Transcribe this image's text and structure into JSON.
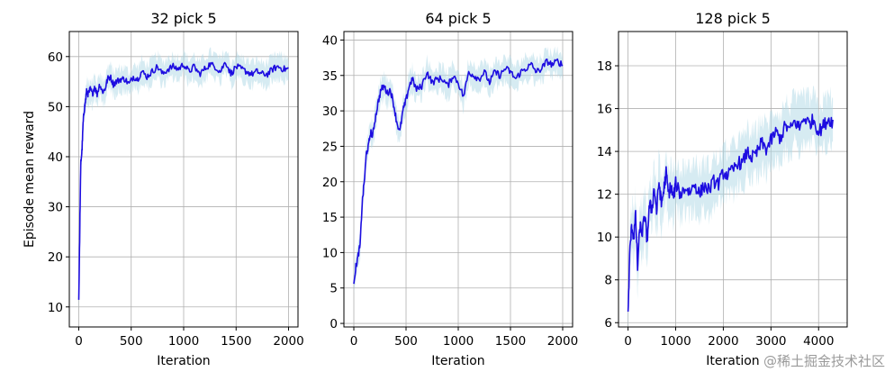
{
  "figure": {
    "ylabel": "Episode mean reward",
    "watermark": "@稀土掘金技术社区",
    "colors": {
      "mean_line": "#1d0de0",
      "band": "#add8e6",
      "grid": "#b0b0b0",
      "axes": "#000000"
    }
  },
  "chart_data": [
    {
      "type": "line",
      "title": "32 pick 5",
      "xlabel": "Iteration",
      "ylabel": "Episode mean reward",
      "xlim": [
        -90,
        2090
      ],
      "ylim": [
        6,
        65
      ],
      "xticks": [
        0,
        500,
        1000,
        1500,
        2000
      ],
      "yticks": [
        10,
        20,
        30,
        40,
        50,
        60
      ],
      "grid": true,
      "series": [
        {
          "x": [
            0,
            10,
            20,
            30,
            40,
            50,
            60,
            75,
            90,
            110,
            130,
            150,
            175,
            200,
            225,
            250,
            275,
            300,
            330,
            360,
            400,
            440,
            480,
            520,
            560,
            600,
            650,
            700,
            750,
            800,
            850,
            900,
            950,
            1000,
            1050,
            1100,
            1150,
            1200,
            1250,
            1300,
            1350,
            1400,
            1450,
            1500,
            1550,
            1600,
            1650,
            1700,
            1750,
            1800,
            1850,
            1900,
            1950,
            2000
          ],
          "y": [
            11.5,
            26,
            39,
            41,
            46,
            49,
            50.5,
            53,
            52.5,
            53.5,
            52.5,
            54,
            52.5,
            54.5,
            53,
            53.5,
            55.5,
            56,
            54.5,
            55,
            55.5,
            55.5,
            54.5,
            56,
            55.5,
            57,
            56,
            57,
            58,
            56.5,
            57.5,
            58,
            57.5,
            58.5,
            57,
            58,
            56.5,
            57.5,
            58.5,
            58,
            57,
            59,
            56.5,
            58,
            57.5,
            57,
            56.5,
            57,
            56.5,
            56.5,
            57.5,
            58,
            57.5,
            57.5
          ],
          "band": 2.2
        }
      ]
    },
    {
      "type": "line",
      "title": "64 pick 5",
      "xlabel": "Iteration",
      "xlim": [
        -95,
        2095
      ],
      "ylim": [
        -0.5,
        41.2
      ],
      "xticks": [
        0,
        500,
        1000,
        1500,
        2000
      ],
      "yticks": [
        0,
        5,
        10,
        15,
        20,
        25,
        30,
        35,
        40
      ],
      "grid": true,
      "series": [
        {
          "x": [
            0,
            20,
            40,
            60,
            80,
            100,
            120,
            140,
            160,
            180,
            200,
            230,
            260,
            290,
            320,
            350,
            380,
            410,
            440,
            470,
            500,
            530,
            560,
            600,
            650,
            700,
            750,
            800,
            850,
            900,
            950,
            1000,
            1050,
            1100,
            1150,
            1200,
            1250,
            1300,
            1350,
            1400,
            1450,
            1500,
            1550,
            1600,
            1650,
            1700,
            1750,
            1800,
            1850,
            1900,
            1950,
            2000
          ],
          "y": [
            6,
            8,
            9.5,
            11,
            17,
            20,
            24,
            25,
            27,
            26.5,
            28.5,
            31,
            33,
            33.5,
            32.5,
            33,
            31,
            28.5,
            27,
            30,
            31.5,
            33.5,
            34.5,
            33,
            33.5,
            35.5,
            34,
            34.5,
            34.5,
            33.5,
            35,
            34,
            32,
            35.5,
            35,
            34.5,
            35.5,
            34,
            35.5,
            35,
            36,
            35.5,
            34.5,
            35.5,
            36,
            36.5,
            35.5,
            36,
            37,
            36.5,
            37,
            36.5
          ],
          "band": 1.6
        }
      ]
    },
    {
      "type": "line",
      "title": "128 pick 5",
      "xlabel": "Iteration",
      "xlim": [
        -200,
        4600
      ],
      "ylim": [
        5.8,
        19.6
      ],
      "xticks": [
        0,
        1000,
        2000,
        3000,
        4000
      ],
      "yticks": [
        6,
        8,
        10,
        12,
        14,
        16,
        18
      ],
      "grid": true,
      "series": [
        {
          "x": [
            0,
            40,
            80,
            120,
            160,
            200,
            250,
            300,
            350,
            400,
            450,
            500,
            550,
            600,
            650,
            700,
            750,
            800,
            850,
            900,
            950,
            1000,
            1100,
            1200,
            1300,
            1400,
            1500,
            1600,
            1700,
            1800,
            1900,
            2000,
            2100,
            2200,
            2300,
            2400,
            2500,
            2600,
            2700,
            2800,
            2900,
            3000,
            3100,
            3200,
            3300,
            3400,
            3500,
            3600,
            3700,
            3800,
            3900,
            4000,
            4100,
            4200,
            4300
          ],
          "y": [
            6.3,
            9.5,
            10.5,
            10,
            11,
            8.6,
            10.5,
            10.2,
            11,
            9.8,
            11.5,
            11.3,
            12.3,
            11.2,
            12.6,
            11.5,
            12.2,
            13,
            12,
            12.4,
            11.8,
            12.5,
            12,
            12.3,
            12.1,
            12.5,
            12,
            12.4,
            12.2,
            12.6,
            12.5,
            13,
            12.9,
            13.1,
            13.5,
            13.4,
            14,
            13.7,
            13.9,
            14.4,
            14.1,
            14.5,
            14.9,
            14.6,
            15.2,
            15,
            15.4,
            15.1,
            15.6,
            15.3,
            15.5,
            14.9,
            15.2,
            15.5,
            15.4
          ],
          "band": 1.05
        }
      ]
    }
  ]
}
